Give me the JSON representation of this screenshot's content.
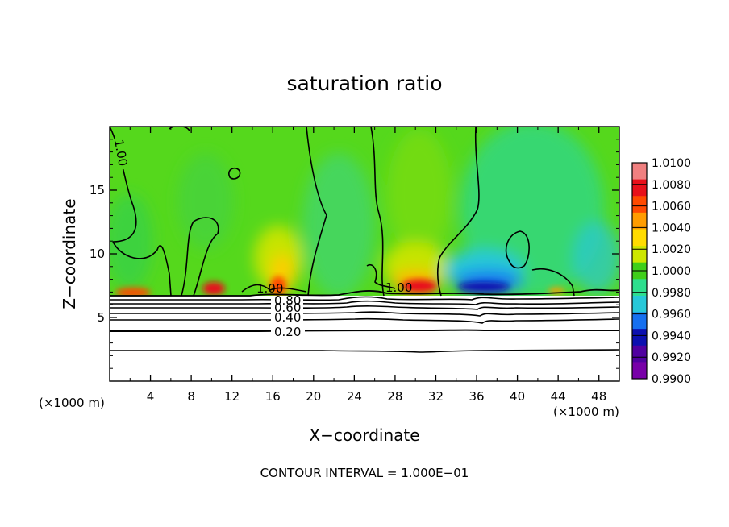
{
  "chart_data": {
    "type": "heatmap",
    "title": "saturation ratio",
    "xlabel": "X−coordinate",
    "ylabel": "Z−coordinate",
    "x_unit": "(×1000 m)",
    "y_unit": "(×1000 m)",
    "xlim": [
      0,
      50
    ],
    "ylim": [
      0,
      20
    ],
    "x_ticks": [
      "4",
      "8",
      "12",
      "16",
      "20",
      "24",
      "28",
      "32",
      "36",
      "40",
      "44",
      "48"
    ],
    "x_tick_values": [
      4,
      8,
      12,
      16,
      20,
      24,
      28,
      32,
      36,
      40,
      44,
      48
    ],
    "y_ticks": [
      "5",
      "10",
      "15"
    ],
    "y_tick_values": [
      5,
      10,
      15
    ],
    "colorbar": {
      "labels": [
        "1.0100",
        "1.0080",
        "1.0060",
        "1.0040",
        "1.0020",
        "1.0000",
        "0.9980",
        "0.9960",
        "0.9940",
        "0.9920",
        "0.9900"
      ],
      "colors": [
        "#f08080",
        "#e8101a",
        "#ff4a00",
        "#ff9c00",
        "#ffdc00",
        "#cde600",
        "#3fcf1a",
        "#2edf8e",
        "#27c8d8",
        "#1670f0",
        "#0c10b0",
        "#5000a0",
        "#7800a8"
      ]
    },
    "contour_labels": [
      {
        "text": "1.00",
        "x": 1.0,
        "z": 17.5
      },
      {
        "text": "1.00",
        "x": 15.5,
        "z": 7.4
      },
      {
        "text": "1.00",
        "x": 27.5,
        "z": 7.3
      },
      {
        "text": "0.80",
        "x": 17.5,
        "z": 6.4
      },
      {
        "text": "0.60",
        "x": 17.5,
        "z": 5.8
      },
      {
        "text": "0.40",
        "x": 17.5,
        "z": 5.1
      },
      {
        "text": "0.20",
        "x": 17.5,
        "z": 3.9
      }
    ],
    "contour_interval_text": "CONTOUR INTERVAL = 1.000E−01",
    "grid": false
  }
}
